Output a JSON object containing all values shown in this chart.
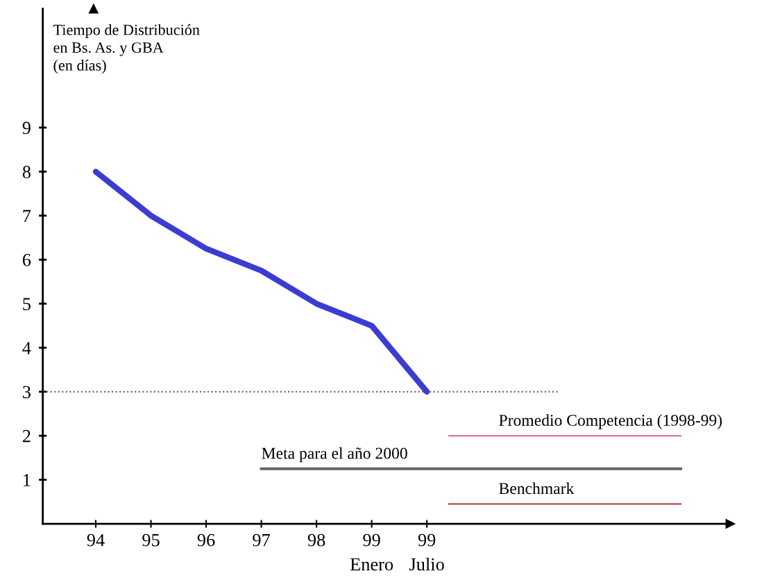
{
  "chart_data": {
    "type": "line",
    "ylabel": "Tiempo de Distribución\nen Bs. As. y GBA\n(en días)",
    "categories": [
      "94",
      "95",
      "96",
      "97",
      "98",
      "99\nEnero",
      "99\nJulio"
    ],
    "series": [
      {
        "color": "#3c3cd2",
        "values": [
          8,
          7,
          6.25,
          5.75,
          5,
          4.5,
          3
        ]
      }
    ],
    "ylim": [
      0,
      11.7
    ],
    "yticks": [
      1,
      2,
      3,
      4,
      5,
      6,
      7,
      8,
      9
    ],
    "grid": false,
    "legend": false,
    "marker": "none",
    "line_style": "solid",
    "ref_lines": [
      {
        "axis": "y",
        "value": 3,
        "label": null,
        "color": "#555555",
        "line_style": "dotted"
      },
      {
        "axis": "y",
        "value": 2,
        "label": "Promedio Competencia (1998-99)",
        "color": "#e0607a",
        "line_style": "solid"
      },
      {
        "axis": "y",
        "value": 1.25,
        "label": "Meta para el año 2000",
        "color": "#666666",
        "line_style": "solid"
      },
      {
        "axis": "y",
        "value": 0.45,
        "label": "Benchmark",
        "color": "#b03040",
        "line_style": "solid"
      }
    ]
  }
}
